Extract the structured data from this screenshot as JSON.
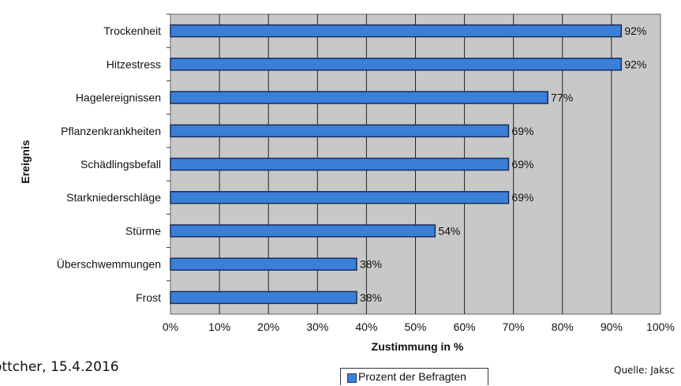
{
  "chart_data": {
    "type": "bar",
    "orientation": "horizontal",
    "categories": [
      "Trockenheit",
      "Hitzestress",
      "Hagelereignissen",
      "Pflanzenkrankheiten",
      "Schädlingsbefall",
      "Starkniederschläge",
      "Stürme",
      "Überschwemmungen",
      "Frost"
    ],
    "series": [
      {
        "name": "Prozent der Befragten",
        "values": [
          92,
          92,
          77,
          69,
          69,
          69,
          54,
          38,
          38
        ]
      }
    ],
    "data_labels": [
      "92%",
      "92%",
      "77%",
      "69%",
      "69%",
      "69%",
      "54%",
      "38%",
      "38%"
    ],
    "xlabel": "Zustimmung in %",
    "ylabel": "Ereignis",
    "xlim": [
      0,
      100
    ],
    "xticks": [
      "0%",
      "10%",
      "20%",
      "30%",
      "40%",
      "50%",
      "60%",
      "70%",
      "80%",
      "90%",
      "100%"
    ],
    "grid": true,
    "legend_position": "bottom",
    "colors": {
      "bar": "#3a7fd8",
      "bar_edge": "#1a2f5a",
      "plot_bg": "#c8c8c8",
      "grid": "#222222"
    }
  },
  "footer": {
    "left_text": "öttcher, 15.4.2016",
    "right_text": "Quelle: Jaksc"
  }
}
